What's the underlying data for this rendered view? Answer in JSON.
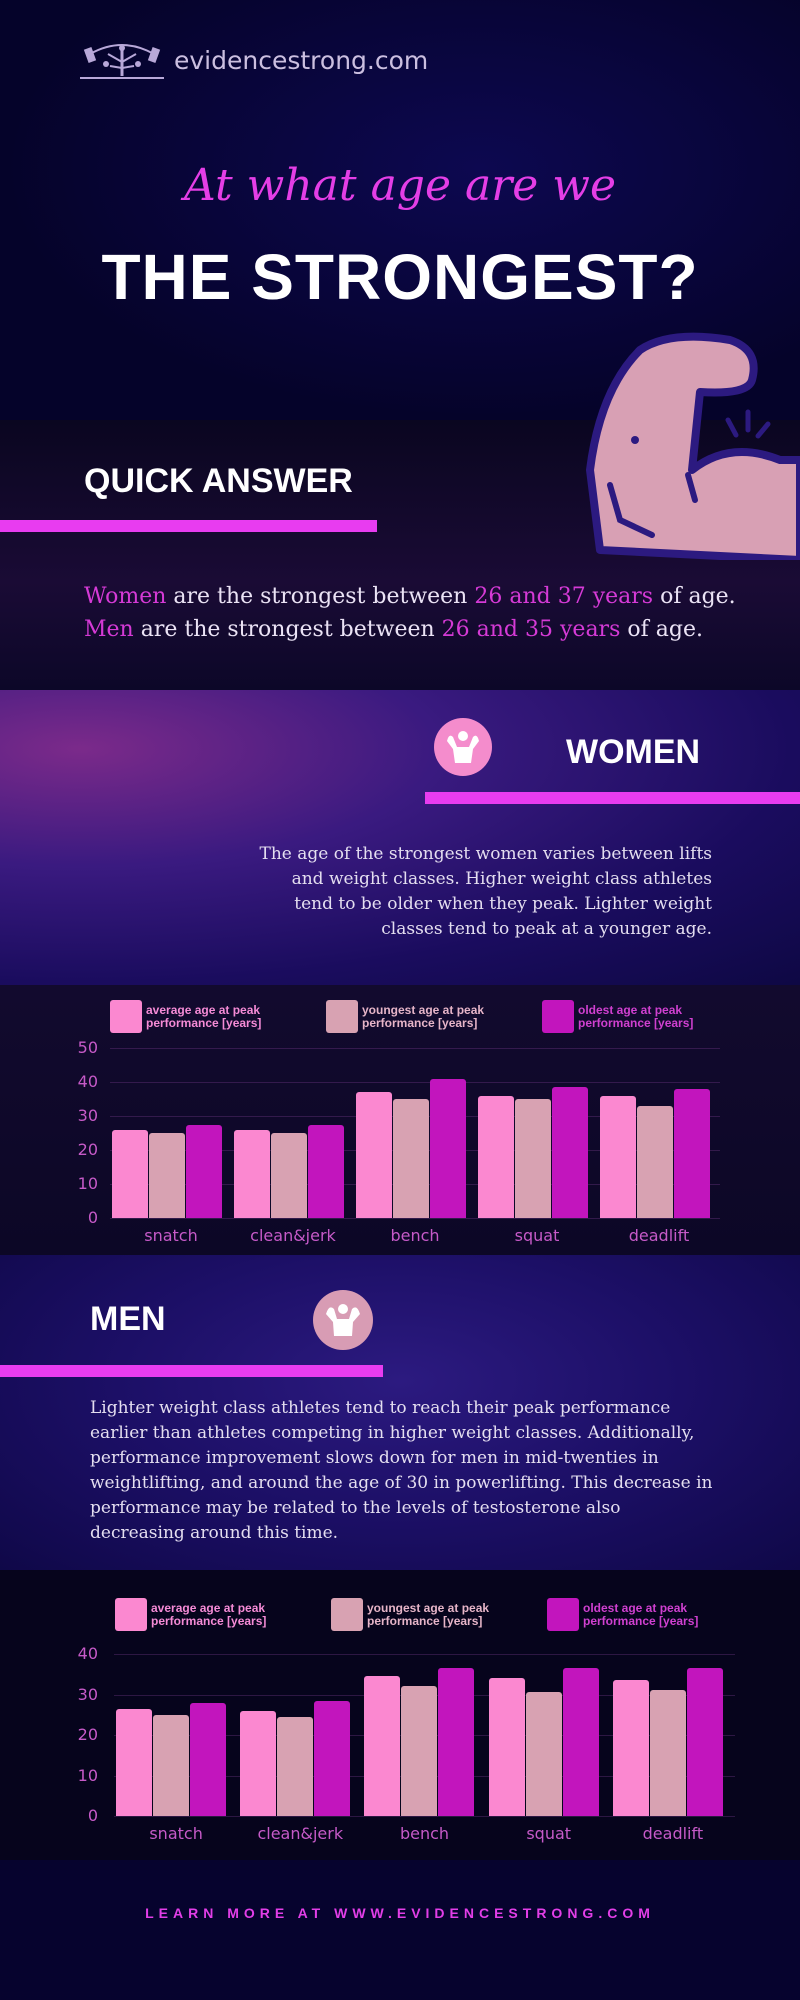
{
  "header": {
    "logo_text": "evidencestrong.com",
    "subtitle": "At what age are we",
    "title": "THE STRONGEST?"
  },
  "quick_answer": {
    "heading": "QUICK ANSWER",
    "women_label": "Women",
    "women_mid": " are the strongest between ",
    "women_range": "26 and 37 years",
    "women_end": " of age.",
    "men_label": "Men",
    "men_mid": " are the strongest between ",
    "men_range": "26 and 35 years",
    "men_end": " of age."
  },
  "women": {
    "heading": "WOMEN",
    "text": "The age of the strongest women varies between lifts and weight classes. Higher weight class athletes tend to be older when they peak. Lighter weight classes tend to peak at a younger age."
  },
  "men": {
    "heading": "MEN",
    "text": "Lighter weight class athletes tend to reach their peak performance earlier than athletes competing in higher weight classes. Additionally, performance improvement slows down for men in mid-twenties in weightlifting, and around the age of 30 in powerlifting. This decrease in performance may be related to the levels of testosterone also decreasing around this time."
  },
  "legend": [
    {
      "label": "average age at peak performance [years]",
      "color": "#fb88d0",
      "text_color": "#f58bd6"
    },
    {
      "label": "youngest age at peak performance [years]",
      "color": "#d8a2b2",
      "text_color": "#e6b5c8"
    },
    {
      "label": "oldest age at peak performance [years]",
      "color": "#c215bd",
      "text_color": "#d040d0"
    }
  ],
  "footer": {
    "text": "LEARN MORE AT WWW.EVIDENCESTRONG.COM"
  },
  "chart_data": [
    {
      "type": "bar",
      "title": "Women",
      "categories": [
        "snatch",
        "clean&jerk",
        "bench",
        "squat",
        "deadlift"
      ],
      "series": [
        {
          "name": "average age at peak performance [years]",
          "values": [
            26,
            26,
            37,
            36,
            36
          ]
        },
        {
          "name": "youngest age at peak performance [years]",
          "values": [
            25,
            25,
            35,
            35,
            33
          ]
        },
        {
          "name": "oldest age at peak performance [years]",
          "values": [
            27.5,
            27.5,
            41,
            38.5,
            38
          ]
        }
      ],
      "xlabel": "",
      "ylabel": "",
      "ylim": [
        0,
        50
      ],
      "yticks": [
        0,
        10,
        20,
        30,
        40,
        50
      ],
      "grid": true,
      "legend_position": "top"
    },
    {
      "type": "bar",
      "title": "Men",
      "categories": [
        "snatch",
        "clean&jerk",
        "bench",
        "squat",
        "deadlift"
      ],
      "series": [
        {
          "name": "average age at peak performance [years]",
          "values": [
            26.5,
            26,
            34.5,
            34,
            33.5
          ]
        },
        {
          "name": "youngest age at peak performance [years]",
          "values": [
            25,
            24.5,
            32,
            30.5,
            31
          ]
        },
        {
          "name": "oldest age at peak performance [years]",
          "values": [
            28,
            28.5,
            36.5,
            36.5,
            36.5
          ]
        }
      ],
      "xlabel": "",
      "ylabel": "",
      "ylim": [
        0,
        40
      ],
      "yticks": [
        0,
        10,
        20,
        30,
        40
      ],
      "grid": true,
      "legend_position": "top"
    }
  ]
}
